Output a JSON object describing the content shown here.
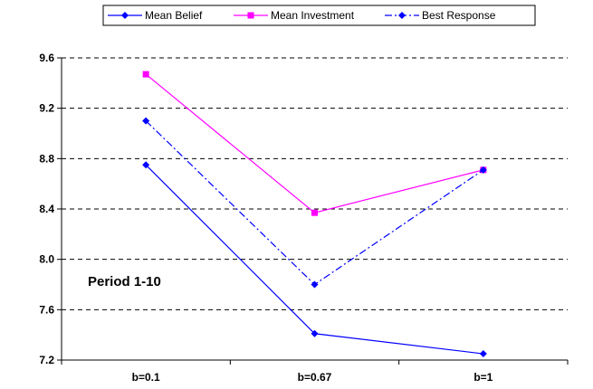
{
  "chart_data": {
    "type": "line",
    "categories": [
      "b=0.1",
      "b=0.67",
      "b=1"
    ],
    "series": [
      {
        "name": "Mean Belief",
        "values": [
          8.75,
          7.41,
          7.25
        ],
        "color": "#0000FF",
        "marker": "diamond",
        "dash": "solid"
      },
      {
        "name": "Mean Investment",
        "values": [
          9.47,
          8.37,
          8.71
        ],
        "color": "#FF00FF",
        "marker": "square",
        "dash": "solid"
      },
      {
        "name": "Best Response",
        "values": [
          9.1,
          7.8,
          8.71
        ],
        "color": "#0000FF",
        "marker": "diamond",
        "dash": "dash-dot"
      }
    ],
    "yticks": [
      "7.2",
      "7.6",
      "8.0",
      "8.4",
      "8.8",
      "9.2",
      "9.6"
    ],
    "ylim": [
      7.2,
      9.6
    ],
    "grid": "horizontal-dashed",
    "legend_position": "top",
    "annotation": "Period 1-10"
  }
}
